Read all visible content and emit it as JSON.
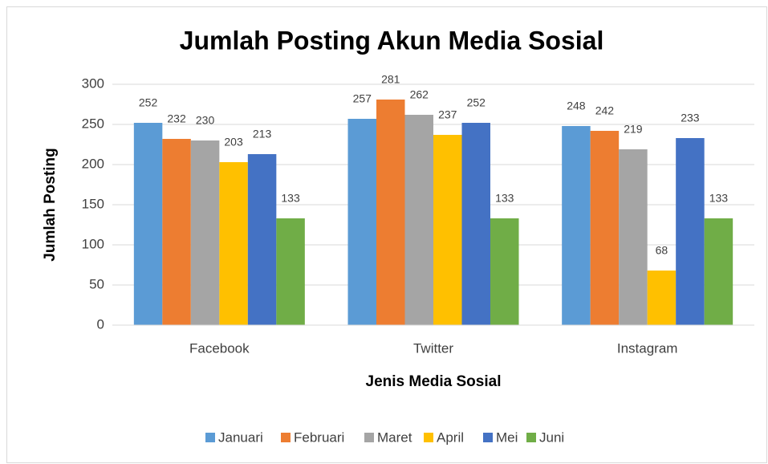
{
  "chart_data": {
    "type": "bar",
    "title": "Jumlah Posting Akun Media Sosial",
    "x_label": "Jenis Media Sosial",
    "y_label": "Jumlah Posting",
    "categories": [
      "Facebook",
      "Twitter",
      "Instagram"
    ],
    "series": [
      {
        "name": "Januari",
        "color": "#5b9bd5",
        "values": [
          252,
          257,
          248
        ]
      },
      {
        "name": "Februari",
        "color": "#ed7d31",
        "values": [
          232,
          281,
          242
        ]
      },
      {
        "name": "Maret",
        "color": "#a5a5a5",
        "values": [
          230,
          262,
          219
        ]
      },
      {
        "name": "April",
        "color": "#ffc000",
        "values": [
          203,
          237,
          68
        ]
      },
      {
        "name": "Mei",
        "color": "#4472c4",
        "values": [
          213,
          252,
          233
        ]
      },
      {
        "name": "Juni",
        "color": "#70ad47",
        "values": [
          133,
          133,
          133
        ]
      }
    ],
    "ylim": [
      0,
      300
    ],
    "yticks": [
      0,
      50,
      100,
      150,
      200,
      250,
      300
    ],
    "grid": true,
    "legend": "bottom"
  }
}
